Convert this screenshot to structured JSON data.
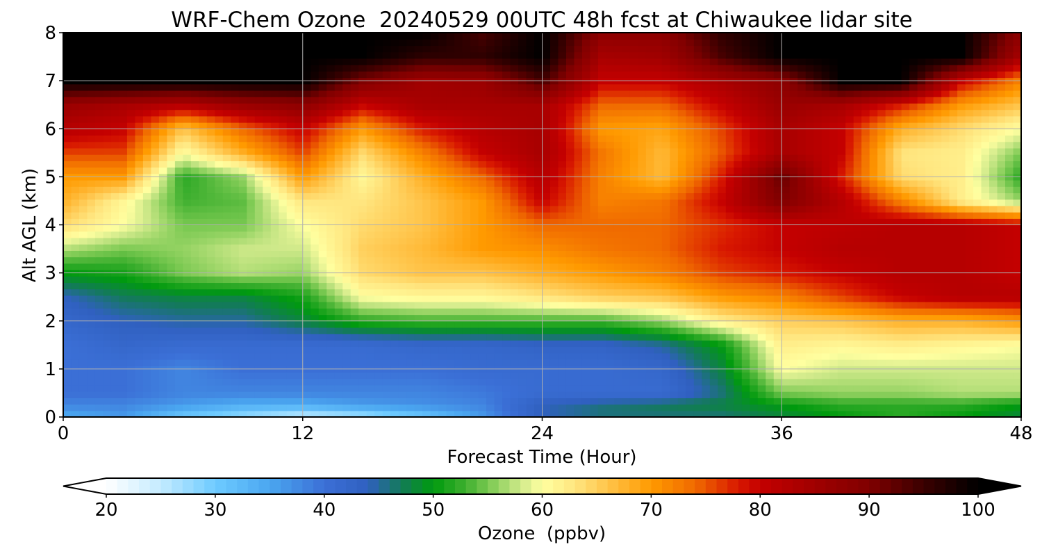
{
  "chart_data": {
    "type": "heatmap",
    "title": "WRF-Chem Ozone  20240529 00UTC 48h fcst at Chiwaukee lidar site",
    "xlabel": "Forecast Time (Hour)",
    "ylabel": "Alt AGL (km)",
    "xlim": [
      0,
      48
    ],
    "ylim": [
      0,
      8
    ],
    "xticks": [
      0,
      12,
      24,
      36,
      48
    ],
    "yticks": [
      0,
      1,
      2,
      3,
      4,
      5,
      6,
      7,
      8
    ],
    "grid": true,
    "x": [
      0,
      3,
      6,
      9,
      12,
      15,
      18,
      21,
      24,
      27,
      30,
      33,
      36,
      39,
      42,
      45,
      48
    ],
    "y": [
      0,
      0.25,
      0.5,
      1,
      1.5,
      2,
      2.5,
      3,
      3.5,
      4,
      4.5,
      5,
      5.5,
      6,
      6.5,
      7,
      7.5,
      8
    ],
    "z": [
      [
        34,
        36,
        30,
        27,
        24,
        26,
        30,
        36,
        44,
        46,
        46,
        46,
        48,
        50,
        52,
        50,
        48
      ],
      [
        38,
        38,
        36,
        34,
        34,
        36,
        37,
        38,
        44,
        46,
        47,
        48,
        50,
        52,
        52,
        52,
        50
      ],
      [
        40,
        40,
        38,
        38,
        38,
        38,
        38,
        39,
        41,
        41,
        41,
        46,
        55,
        56,
        56,
        57,
        57
      ],
      [
        40,
        40,
        38,
        40,
        40,
        40,
        40,
        41,
        41,
        41,
        42,
        48,
        60,
        58,
        58,
        58,
        58
      ],
      [
        40,
        42,
        41,
        41,
        41,
        41,
        42,
        42,
        43,
        43,
        45,
        50,
        62,
        61,
        62,
        61,
        60
      ],
      [
        42,
        44,
        45,
        45,
        48,
        52,
        53,
        53,
        53,
        53,
        56,
        62,
        65,
        66,
        68,
        68,
        70
      ],
      [
        44,
        47,
        48,
        48,
        51,
        60,
        61,
        61,
        63,
        65,
        66,
        70,
        72,
        76,
        80,
        82,
        82
      ],
      [
        50,
        51,
        55,
        57,
        56,
        64,
        66,
        66,
        68,
        70,
        72,
        76,
        78,
        80,
        82,
        82,
        80
      ],
      [
        57,
        55,
        56,
        58,
        58,
        65,
        67,
        70,
        71,
        73,
        74,
        78,
        80,
        82,
        82,
        82,
        80
      ],
      [
        64,
        60,
        55,
        55,
        60,
        64,
        66,
        70,
        74,
        74,
        74,
        77,
        80,
        81,
        82,
        82,
        80
      ],
      [
        68,
        61,
        53,
        54,
        63,
        63,
        66,
        70,
        80,
        72,
        73,
        80,
        90,
        82,
        72,
        62,
        56
      ],
      [
        70,
        70,
        52,
        56,
        70,
        61,
        68,
        74,
        82,
        72,
        67,
        78,
        92,
        78,
        64,
        62,
        52
      ],
      [
        76,
        76,
        60,
        68,
        76,
        64,
        72,
        80,
        84,
        73,
        67,
        75,
        84,
        80,
        63,
        62,
        55
      ],
      [
        82,
        80,
        66,
        74,
        80,
        70,
        78,
        82,
        84,
        70,
        69,
        76,
        84,
        80,
        68,
        64,
        60
      ],
      [
        86,
        84,
        82,
        86,
        88,
        80,
        84,
        84,
        84,
        74,
        74,
        80,
        86,
        84,
        78,
        70,
        66
      ],
      [
        100,
        100,
        100,
        100,
        100,
        90,
        85,
        86,
        94,
        80,
        80,
        84,
        88,
        100,
        100,
        80,
        72
      ],
      [
        100,
        100,
        100,
        100,
        100,
        100,
        96,
        96,
        100,
        84,
        85,
        94,
        100,
        100,
        100,
        100,
        84
      ],
      [
        100,
        100,
        100,
        100,
        100,
        100,
        100,
        94,
        100,
        88,
        88,
        96,
        100,
        100,
        100,
        100,
        88
      ]
    ],
    "colorbar": {
      "label": "Ozone  (ppbv)",
      "min": 20,
      "max": 100,
      "ticks": [
        20,
        30,
        40,
        50,
        60,
        70,
        80,
        90,
        100
      ],
      "extend": "both",
      "colors": [
        {
          "v": 20,
          "c": "#ffffff"
        },
        {
          "v": 25,
          "c": "#c4ebff"
        },
        {
          "v": 30,
          "c": "#6ecbff"
        },
        {
          "v": 35,
          "c": "#4aa6f0"
        },
        {
          "v": 40,
          "c": "#3b6fd6"
        },
        {
          "v": 44,
          "c": "#3060c0"
        },
        {
          "v": 47,
          "c": "#137a5a"
        },
        {
          "v": 50,
          "c": "#009a0e"
        },
        {
          "v": 53,
          "c": "#40b030"
        },
        {
          "v": 55,
          "c": "#78c850"
        },
        {
          "v": 58,
          "c": "#cfe98a"
        },
        {
          "v": 60,
          "c": "#ffffa0"
        },
        {
          "v": 63,
          "c": "#ffe680"
        },
        {
          "v": 66,
          "c": "#ffc44a"
        },
        {
          "v": 70,
          "c": "#ff9a00"
        },
        {
          "v": 74,
          "c": "#f06a00"
        },
        {
          "v": 78,
          "c": "#d81800"
        },
        {
          "v": 80,
          "c": "#c40000"
        },
        {
          "v": 85,
          "c": "#a00000"
        },
        {
          "v": 90,
          "c": "#800000"
        },
        {
          "v": 95,
          "c": "#3a0000"
        },
        {
          "v": 100,
          "c": "#000000"
        }
      ]
    }
  }
}
